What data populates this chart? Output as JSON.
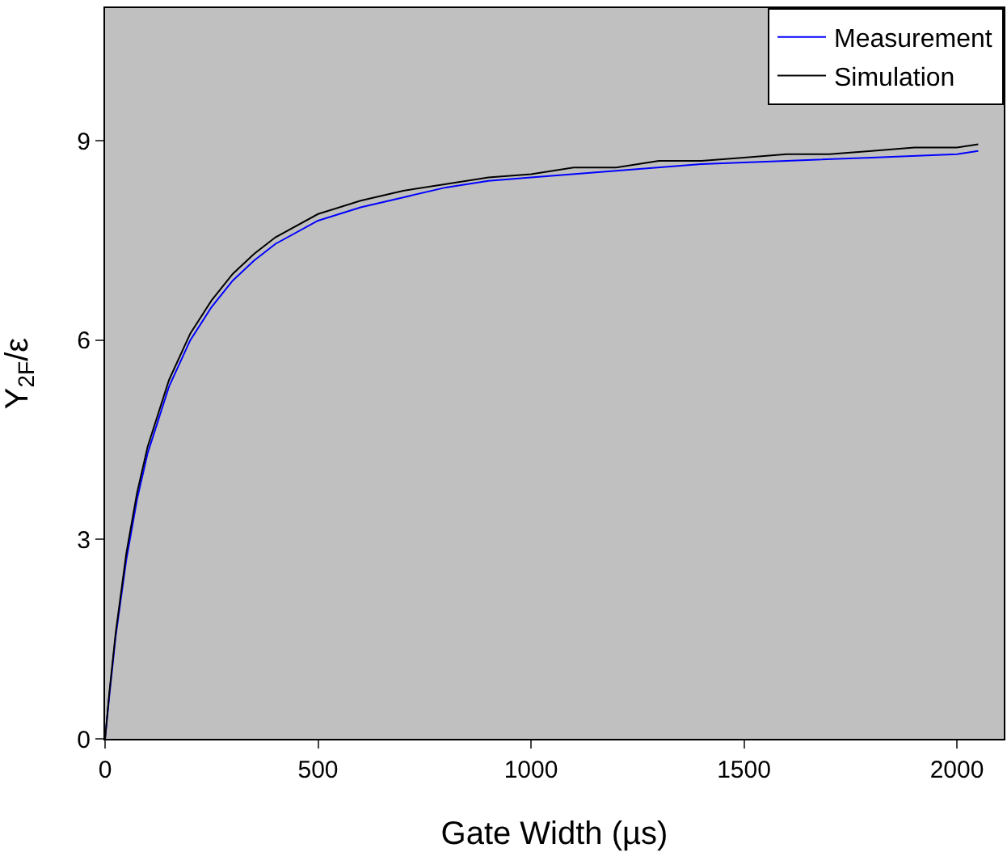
{
  "chart_data": {
    "type": "line",
    "xlabel": "Gate Width (µs)",
    "ylabel": "Y$_{2F}$/ε",
    "xlim": [
      0,
      2110
    ],
    "ylim": [
      0,
      11
    ],
    "xticks": [
      0,
      500,
      1000,
      1500,
      2000
    ],
    "yticks": [
      0,
      3,
      6,
      9
    ],
    "grid": false,
    "legend": "top right",
    "marker": "none",
    "line_style": "solid",
    "series": [
      {
        "name": "Measurement",
        "color": "#0000ff",
        "x": [
          0,
          10,
          25,
          50,
          75,
          100,
          150,
          200,
          250,
          300,
          350,
          400,
          500,
          600,
          700,
          800,
          900,
          1000,
          1200,
          1400,
          1600,
          1800,
          2000,
          2050
        ],
        "values": [
          0,
          0.65,
          1.55,
          2.7,
          3.6,
          4.3,
          5.3,
          6.0,
          6.5,
          6.9,
          7.2,
          7.45,
          7.8,
          8.0,
          8.15,
          8.3,
          8.4,
          8.45,
          8.55,
          8.65,
          8.7,
          8.75,
          8.8,
          8.85
        ]
      },
      {
        "name": "Simulation",
        "color": "#000000",
        "x": [
          0,
          10,
          25,
          50,
          75,
          100,
          150,
          200,
          250,
          300,
          350,
          400,
          500,
          600,
          700,
          800,
          900,
          1000,
          1100,
          1200,
          1300,
          1400,
          1500,
          1600,
          1700,
          1800,
          1900,
          2000,
          2050
        ],
        "values": [
          0,
          0.7,
          1.6,
          2.8,
          3.7,
          4.4,
          5.4,
          6.1,
          6.6,
          7.0,
          7.3,
          7.55,
          7.9,
          8.1,
          8.25,
          8.35,
          8.45,
          8.5,
          8.6,
          8.6,
          8.7,
          8.7,
          8.75,
          8.8,
          8.8,
          8.85,
          8.9,
          8.9,
          8.95
        ]
      }
    ]
  }
}
